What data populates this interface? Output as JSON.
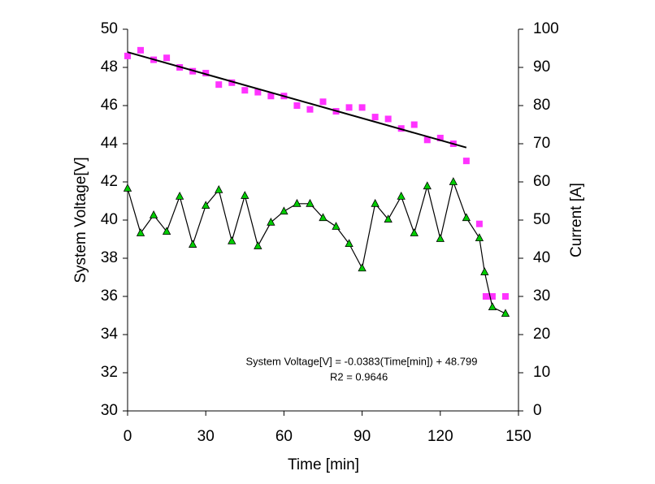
{
  "chart_data": {
    "type": "scatter",
    "xlabel": "Time [min]",
    "ylabel": "System Voltage[V]",
    "y2label": "Current [A]",
    "xlim": [
      0,
      150
    ],
    "xticks": [
      0,
      30,
      60,
      90,
      120,
      150
    ],
    "ylim": [
      30,
      50
    ],
    "yticks": [
      30,
      32,
      34,
      36,
      38,
      40,
      42,
      44,
      46,
      48,
      50
    ],
    "y2lim": [
      0,
      100
    ],
    "y2ticks": [
      0,
      10,
      20,
      30,
      40,
      50,
      60,
      70,
      80,
      90,
      100
    ],
    "annotations": [
      "System Voltage[V] = -0.0383(Time[min]) + 48.799",
      "R2 = 0.9646"
    ],
    "series": [
      {
        "color": "#ff33ff",
        "marker": "square",
        "axis": "y",
        "x": [
          0,
          5,
          10,
          15,
          20,
          25,
          30,
          35,
          40,
          45,
          50,
          55,
          60,
          65,
          70,
          75,
          80,
          85,
          90,
          95,
          100,
          105,
          110,
          115,
          120,
          125,
          130,
          135,
          137.5,
          140,
          145
        ],
        "values": [
          48.6,
          48.9,
          48.4,
          48.5,
          48.0,
          47.8,
          47.7,
          47.1,
          47.2,
          46.8,
          46.7,
          46.5,
          46.5,
          46.0,
          45.8,
          46.2,
          45.7,
          45.9,
          45.9,
          45.4,
          45.3,
          44.8,
          45.0,
          44.2,
          44.3,
          44.0,
          43.1,
          39.8,
          36.0,
          36.0,
          36.0
        ]
      },
      {
        "color": "#00cc00",
        "marker": "triangle",
        "line": true,
        "axis": "y2",
        "x": [
          0,
          5,
          10,
          15,
          20,
          25,
          30,
          35,
          40,
          45,
          50,
          55,
          60,
          65,
          70,
          75,
          80,
          85,
          90,
          95,
          100,
          105,
          110,
          115,
          120,
          125,
          130,
          135,
          137,
          140,
          145
        ],
        "values": [
          58.3,
          46.6,
          51.3,
          47.0,
          56.2,
          43.6,
          53.8,
          57.9,
          44.5,
          56.4,
          43.2,
          49.4,
          52.3,
          54.3,
          54.3,
          50.6,
          48.3,
          43.8,
          37.4,
          54.3,
          50.2,
          56.2,
          46.6,
          58.9,
          45.1,
          60.0,
          50.6,
          45.3,
          36.4,
          27.2,
          25.5
        ]
      },
      {
        "color": "#000000",
        "marker": "none",
        "line": true,
        "axis": "y",
        "x": [
          0,
          130
        ],
        "values": [
          48.8,
          43.8
        ]
      }
    ]
  }
}
